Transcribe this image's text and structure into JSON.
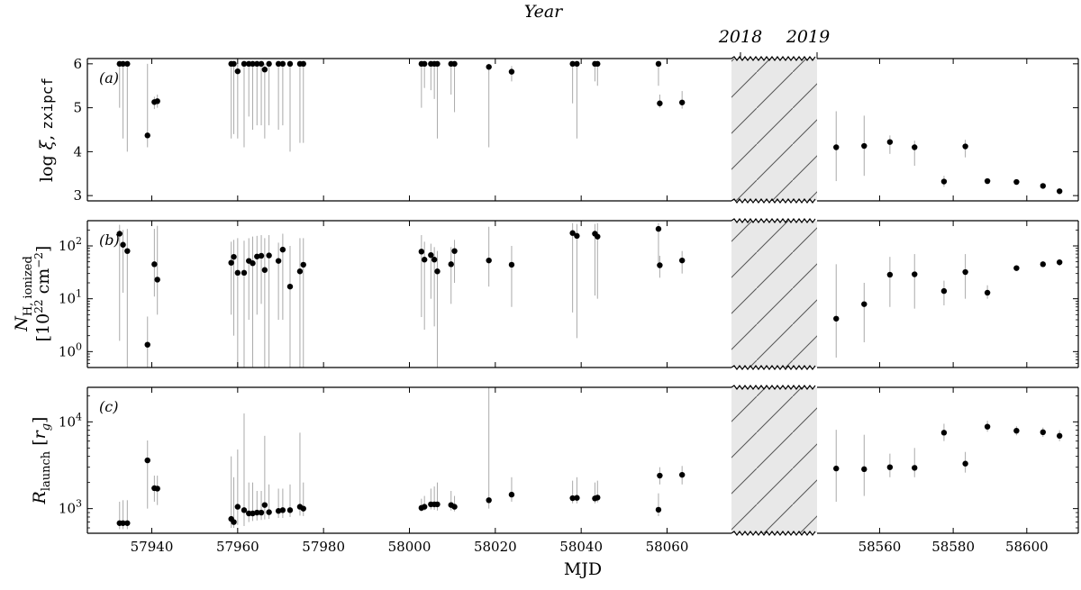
{
  "chart_data": {
    "type": "scatter",
    "top_axis_title": "Year",
    "year_labels": [
      "2018",
      "2019"
    ],
    "xlabel": "MJD",
    "x_segments": [
      {
        "range": [
          57925,
          58075
        ],
        "ticks": [
          57940,
          57960,
          57980,
          58000,
          58020,
          58040,
          58060
        ],
        "tick_labels": [
          "57940",
          "57960",
          "57980",
          "58000",
          "58020",
          "58040",
          "58060"
        ]
      },
      {
        "range": [
          58543,
          58614
        ],
        "ticks": [
          58560,
          58580,
          58600
        ],
        "tick_labels": [
          "58560",
          "58580",
          "58600"
        ]
      }
    ],
    "gap": "hatched",
    "panels": [
      {
        "tag": "(a)",
        "ylabel": "log ξ, zxipcf",
        "yscale": "linear",
        "ylim": [
          2.88,
          6.12
        ],
        "ticks": [
          3,
          4,
          5,
          6
        ],
        "tick_labels": [
          "3",
          "4",
          "5",
          "6"
        ],
        "points": [
          [
            57932.5,
            6.0,
            5.0,
            6.0
          ],
          [
            57933.3,
            6.0,
            4.3,
            6.0
          ],
          [
            57934.3,
            6.0,
            4.0,
            6.0
          ],
          [
            57939.0,
            4.37,
            4.1,
            6.0
          ],
          [
            57940.6,
            5.13,
            4.97,
            5.25
          ],
          [
            57941.3,
            5.15,
            5.0,
            5.3
          ],
          [
            57958.5,
            6.0,
            4.3,
            6.0
          ],
          [
            57959.1,
            6.0,
            4.4,
            6.0
          ],
          [
            57960.0,
            5.83,
            4.3,
            6.0
          ],
          [
            57961.5,
            6.0,
            4.1,
            6.0
          ],
          [
            57962.6,
            6.0,
            4.8,
            6.0
          ],
          [
            57963.5,
            6.0,
            4.5,
            6.0
          ],
          [
            57964.5,
            6.0,
            4.6,
            6.0
          ],
          [
            57965.5,
            6.0,
            4.6,
            6.0
          ],
          [
            57966.3,
            5.87,
            4.3,
            6.0
          ],
          [
            57967.3,
            6.0,
            4.6,
            6.0
          ],
          [
            57969.5,
            6.0,
            4.5,
            6.0
          ],
          [
            57970.5,
            6.0,
            4.6,
            6.0
          ],
          [
            57972.2,
            6.0,
            4.0,
            6.0
          ],
          [
            57974.5,
            6.0,
            4.2,
            6.0
          ],
          [
            57975.3,
            6.0,
            4.2,
            6.0
          ],
          [
            58002.8,
            6.0,
            5.0,
            6.0
          ],
          [
            58003.5,
            6.0,
            5.45,
            6.0
          ],
          [
            58005.0,
            6.0,
            5.4,
            6.0
          ],
          [
            58005.8,
            6.0,
            5.2,
            6.0
          ],
          [
            58006.5,
            6.0,
            4.3,
            6.0
          ],
          [
            58009.7,
            6.0,
            5.3,
            6.0
          ],
          [
            58010.5,
            6.0,
            4.9,
            6.0
          ],
          [
            58018.5,
            5.93,
            4.1,
            6.0
          ],
          [
            58023.8,
            5.82,
            5.6,
            5.95
          ],
          [
            58038.0,
            6.0,
            5.1,
            6.0
          ],
          [
            58039.0,
            6.0,
            4.3,
            6.0
          ],
          [
            58043.2,
            6.0,
            5.6,
            6.0
          ],
          [
            58043.8,
            6.0,
            5.5,
            6.0
          ],
          [
            58058.0,
            6.0,
            5.5,
            6.0
          ],
          [
            58058.3,
            5.1,
            5.0,
            5.3
          ],
          [
            58063.5,
            5.12,
            4.98,
            5.38
          ],
          [
            58548.2,
            4.1,
            3.33,
            4.92
          ],
          [
            58555.8,
            4.13,
            3.45,
            4.82
          ],
          [
            58562.8,
            4.22,
            3.95,
            4.37
          ],
          [
            58569.5,
            4.1,
            3.68,
            4.25
          ],
          [
            58577.5,
            3.32,
            3.2,
            3.45
          ],
          [
            58583.3,
            4.12,
            3.87,
            4.27
          ],
          [
            58589.3,
            3.33,
            3.28,
            3.38
          ],
          [
            58597.2,
            3.31,
            3.26,
            3.36
          ],
          [
            58604.4,
            3.22,
            3.17,
            3.27
          ],
          [
            58608.9,
            3.1,
            3.06,
            3.15
          ]
        ]
      },
      {
        "tag": "(b)",
        "ylabel": "N_H, ionized",
        "ylabel_units": "[10^22 cm^-2]",
        "yscale": "log",
        "ylim": [
          0.5,
          300
        ],
        "ticks": [
          1,
          10,
          100
        ],
        "tick_labels": [
          "10^0",
          "10^1",
          "10^2"
        ],
        "points": [
          [
            57932.5,
            170,
            1.6,
            250
          ],
          [
            57933.3,
            105,
            13,
            200
          ],
          [
            57934.3,
            80,
            0.5,
            210
          ],
          [
            57939.0,
            1.35,
            0.5,
            4.6
          ],
          [
            57940.6,
            45,
            11,
            210
          ],
          [
            57941.3,
            23,
            5,
            240
          ],
          [
            57958.5,
            48,
            5,
            120
          ],
          [
            57959.1,
            62,
            2,
            130
          ],
          [
            57960.0,
            31,
            0.5,
            140
          ],
          [
            57961.5,
            31,
            0.5,
            125
          ],
          [
            57962.6,
            52,
            4,
            140
          ],
          [
            57963.5,
            47,
            0.5,
            150
          ],
          [
            57964.5,
            63,
            5,
            155
          ],
          [
            57965.5,
            65,
            8,
            160
          ],
          [
            57966.3,
            35,
            0.5,
            140
          ],
          [
            57967.3,
            66,
            0.5,
            160
          ],
          [
            57969.5,
            52,
            4,
            115
          ],
          [
            57970.5,
            85,
            4,
            170
          ],
          [
            57972.2,
            17,
            0.5,
            100
          ],
          [
            57974.5,
            33,
            0.5,
            140
          ],
          [
            57975.3,
            44,
            0.5,
            140
          ],
          [
            58002.8,
            78,
            4.5,
            160
          ],
          [
            58003.5,
            55,
            2.6,
            120
          ],
          [
            58005.0,
            67,
            10,
            110
          ],
          [
            58005.8,
            55,
            3,
            95
          ],
          [
            58006.5,
            33,
            0.5,
            80
          ],
          [
            58009.7,
            45,
            8,
            95
          ],
          [
            58010.5,
            80,
            20,
            130
          ],
          [
            58018.5,
            53,
            17,
            230
          ],
          [
            58023.8,
            44,
            7,
            100
          ],
          [
            58038.0,
            175,
            5.5,
            270
          ],
          [
            58039.0,
            155,
            1.8,
            260
          ],
          [
            58043.2,
            170,
            11.5,
            260
          ],
          [
            58043.8,
            150,
            10,
            270
          ],
          [
            58058.0,
            210,
            40,
            270
          ],
          [
            58058.3,
            43,
            25,
            65
          ],
          [
            58063.5,
            53,
            30,
            80
          ],
          [
            58548.2,
            4.2,
            0.77,
            45
          ],
          [
            58555.8,
            7.9,
            1.5,
            20
          ],
          [
            58562.8,
            28.5,
            7,
            62
          ],
          [
            58569.5,
            29,
            6.5,
            70
          ],
          [
            58577.5,
            14,
            7.5,
            22
          ],
          [
            58583.3,
            32,
            10,
            70
          ],
          [
            58589.3,
            13,
            10,
            18
          ],
          [
            58597.2,
            38,
            34,
            43
          ],
          [
            58604.4,
            45,
            40,
            50
          ],
          [
            58608.9,
            49,
            42,
            56
          ]
        ]
      },
      {
        "tag": "(c)",
        "ylabel": "R_launch [r_g]",
        "yscale": "log",
        "ylim": [
          520,
          25000
        ],
        "ticks": [
          1000,
          10000
        ],
        "tick_labels": [
          "10^3",
          "10^4"
        ],
        "points": [
          [
            57932.5,
            680,
            580,
            1200
          ],
          [
            57933.3,
            680,
            580,
            1250
          ],
          [
            57934.3,
            680,
            580,
            1250
          ],
          [
            57939.0,
            3600,
            1000,
            6100
          ],
          [
            57940.6,
            1720,
            1200,
            2400
          ],
          [
            57941.3,
            1700,
            1100,
            2400
          ],
          [
            57958.5,
            760,
            600,
            4000
          ],
          [
            57959.1,
            700,
            600,
            2300
          ],
          [
            57960.0,
            1050,
            650,
            4800
          ],
          [
            57961.5,
            960,
            630,
            12500
          ],
          [
            57962.6,
            880,
            700,
            2000
          ],
          [
            57963.5,
            880,
            720,
            2000
          ],
          [
            57964.5,
            900,
            730,
            1600
          ],
          [
            57965.5,
            900,
            740,
            1600
          ],
          [
            57966.3,
            1100,
            750,
            6900
          ],
          [
            57967.3,
            910,
            760,
            1900
          ],
          [
            57969.5,
            940,
            780,
            1700
          ],
          [
            57970.5,
            960,
            780,
            1700
          ],
          [
            57972.2,
            960,
            800,
            1900
          ],
          [
            57974.5,
            1050,
            830,
            7500
          ],
          [
            57975.3,
            1000,
            820,
            2000
          ],
          [
            58002.8,
            1020,
            920,
            1300
          ],
          [
            58003.5,
            1050,
            950,
            1400
          ],
          [
            58005.0,
            1120,
            980,
            1700
          ],
          [
            58005.8,
            1120,
            970,
            1800
          ],
          [
            58006.5,
            1120,
            950,
            2000
          ],
          [
            58009.7,
            1100,
            950,
            1600
          ],
          [
            58010.5,
            1050,
            930,
            1400
          ],
          [
            58018.5,
            1250,
            1000,
            25000
          ],
          [
            58023.8,
            1450,
            1200,
            2300
          ],
          [
            58038.0,
            1320,
            1150,
            2100
          ],
          [
            58039.0,
            1330,
            1150,
            2300
          ],
          [
            58043.2,
            1310,
            1150,
            2000
          ],
          [
            58043.8,
            1340,
            1180,
            2100
          ],
          [
            58058.0,
            970,
            820,
            1500
          ],
          [
            58058.3,
            2400,
            1900,
            3000
          ],
          [
            58063.5,
            2450,
            1900,
            3100
          ],
          [
            58548.2,
            2900,
            1200,
            8100
          ],
          [
            58555.8,
            2850,
            1400,
            7100
          ],
          [
            58562.8,
            3000,
            2300,
            4300
          ],
          [
            58569.5,
            2950,
            2300,
            5000
          ],
          [
            58577.5,
            7500,
            6000,
            9500
          ],
          [
            58583.3,
            3300,
            2600,
            4500
          ],
          [
            58589.3,
            8800,
            7700,
            10300
          ],
          [
            58597.2,
            7900,
            7000,
            8900
          ],
          [
            58604.4,
            7600,
            6700,
            8600
          ],
          [
            58608.9,
            6900,
            6000,
            8000
          ]
        ]
      }
    ]
  }
}
